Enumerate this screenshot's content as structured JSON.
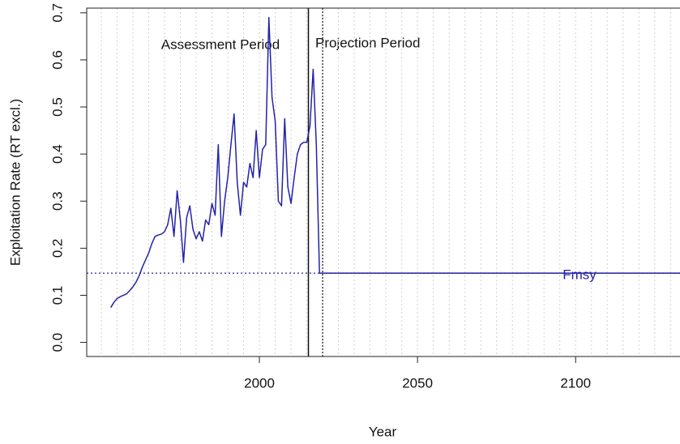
{
  "chart_data": {
    "type": "line",
    "xlabel": "Year",
    "ylabel": "Exploitation Rate (RT excl.)",
    "xlim": [
      1945.4,
      2133
    ],
    "ylim": [
      -0.03,
      0.71
    ],
    "xticks": [
      2000,
      2050,
      2100
    ],
    "yticks": [
      {
        "value": 0,
        "label": "0.0"
      },
      0.1,
      0.2,
      0.3,
      0.4,
      0.5,
      0.6,
      0.7
    ],
    "xgrid": [
      1950,
      1955,
      1960,
      1965,
      1970,
      1975,
      1980,
      1985,
      1990,
      1995,
      2000,
      2005,
      2010,
      2015,
      2020,
      2025,
      2030,
      2035,
      2040,
      2045,
      2050,
      2055,
      2060,
      2065,
      2070,
      2075,
      2080,
      2085,
      2090,
      2095,
      2100,
      2105,
      2110,
      2115,
      2120,
      2125,
      2130
    ],
    "grid": true,
    "x": [
      1953,
      1954,
      1955,
      1956,
      1957,
      1958,
      1959,
      1960,
      1961,
      1962,
      1963,
      1964,
      1965,
      1966,
      1967,
      1968,
      1969,
      1970,
      1971,
      1972,
      1973,
      1974,
      1975,
      1976,
      1977,
      1978,
      1979,
      1980,
      1981,
      1982,
      1983,
      1984,
      1985,
      1986,
      1987,
      1988,
      1989,
      1990,
      1991,
      1992,
      1993,
      1994,
      1995,
      1996,
      1997,
      1998,
      1999,
      2000,
      2001,
      2002,
      2003,
      2004,
      2005,
      2006,
      2007,
      2008,
      2009,
      2010,
      2011,
      2012,
      2013,
      2014,
      2015,
      2016,
      2017,
      2018,
      2019,
      2133
    ],
    "series": [
      {
        "color": "#2323a8",
        "values": [
          0.074,
          0.085,
          0.093,
          0.097,
          0.1,
          0.103,
          0.11,
          0.118,
          0.128,
          0.142,
          0.16,
          0.175,
          0.19,
          0.21,
          0.225,
          0.228,
          0.23,
          0.235,
          0.25,
          0.285,
          0.225,
          0.322,
          0.26,
          0.17,
          0.265,
          0.29,
          0.24,
          0.22,
          0.235,
          0.215,
          0.26,
          0.25,
          0.295,
          0.27,
          0.42,
          0.225,
          0.3,
          0.35,
          0.42,
          0.485,
          0.34,
          0.27,
          0.34,
          0.33,
          0.38,
          0.35,
          0.45,
          0.35,
          0.41,
          0.42,
          0.69,
          0.52,
          0.47,
          0.3,
          0.29,
          0.475,
          0.33,
          0.295,
          0.35,
          0.4,
          0.42,
          0.425,
          0.425,
          0.46,
          0.58,
          0.42,
          0.147,
          0.147
        ]
      }
    ],
    "reference_line": {
      "value": 0.147,
      "label": "Fmsy",
      "color": "#2323a8"
    },
    "vlines": [
      {
        "value": 2015.5,
        "style": "solid"
      },
      {
        "value": 2020,
        "style": "dotted"
      }
    ],
    "annotations": [
      "Assessment Period",
      "Projection Period"
    ]
  }
}
